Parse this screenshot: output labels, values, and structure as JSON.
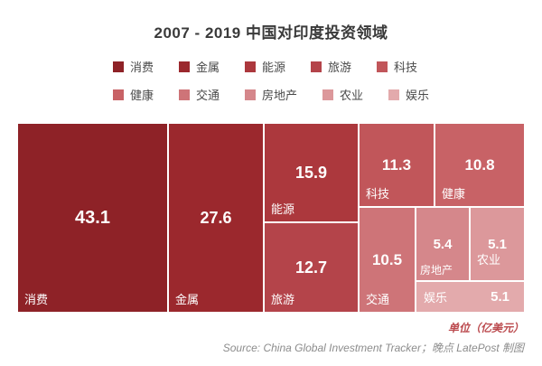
{
  "chart_data": {
    "type": "treemap",
    "title": "2007 - 2019 中国对印度投资领域",
    "unit": "亿美元",
    "items": [
      {
        "label": "消费",
        "value": 43.1,
        "color": "#8e2227"
      },
      {
        "label": "金属",
        "value": 27.6,
        "color": "#9b282d"
      },
      {
        "label": "能源",
        "value": 15.9,
        "color": "#ac383d"
      },
      {
        "label": "旅游",
        "value": 12.7,
        "color": "#b4444a"
      },
      {
        "label": "科技",
        "value": 11.3,
        "color": "#c1565a"
      },
      {
        "label": "健康",
        "value": 10.8,
        "color": "#c86266"
      },
      {
        "label": "交通",
        "value": 10.5,
        "color": "#ce7478"
      },
      {
        "label": "房地产",
        "value": 5.4,
        "color": "#d5878b"
      },
      {
        "label": "农业",
        "value": 5.1,
        "color": "#dc989b"
      },
      {
        "label": "娱乐",
        "value": 5.1,
        "color": "#e3aaac"
      }
    ]
  },
  "footer": {
    "unit_note": "单位（亿美元）",
    "source": "Source: China Global Investment Tracker；晚点 LatePost 制图"
  }
}
